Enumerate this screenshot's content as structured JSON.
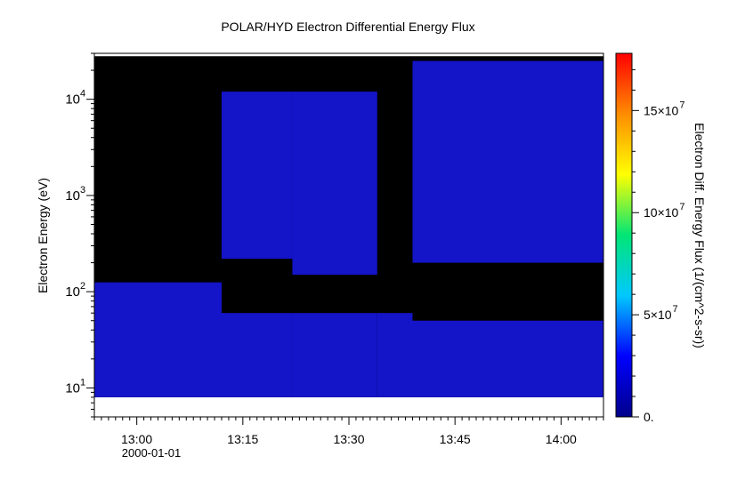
{
  "chart_data": {
    "type": "heatmap",
    "title": "POLAR/HYD  Electron Differential Energy Flux",
    "xlabel": "",
    "ylabel": "Electron Energy (eV)",
    "x_axis": {
      "type": "time",
      "ticks": [
        "13:00",
        "13:15",
        "13:30",
        "13:45",
        "14:00"
      ],
      "date_label": "2000-01-01",
      "range": [
        "12:54",
        "14:06"
      ],
      "minor_tick_minutes": 1
    },
    "y_axis": {
      "scale": "log",
      "range": [
        5,
        30000
      ],
      "tick_labels": [
        "10",
        "10",
        "10",
        "10"
      ],
      "tick_exponents": [
        "1",
        "2",
        "3",
        "4"
      ],
      "data_range": [
        8,
        28000
      ]
    },
    "colorbar": {
      "label": "Electron Diff. Energy Flux (1/(cm^2-s-sr))",
      "range": [
        0,
        178000000
      ],
      "colormap": "rainbow",
      "tick_labels": [
        "0.",
        "5×10",
        "10×10",
        "15×10"
      ],
      "tick_exponents": [
        "",
        "7",
        "7",
        "7"
      ],
      "colors": [
        "#00008b",
        "#0000ff",
        "#00c8ff",
        "#00e676",
        "#ffff00",
        "#ff8c00",
        "#ff0000"
      ]
    },
    "background_color": "#000000",
    "flux_color": "#1414c8",
    "regions": [
      {
        "t_start": "12:54",
        "t_end": "13:12",
        "e_low": 8,
        "e_high": 125
      },
      {
        "t_start": "13:12",
        "t_end": "13:22",
        "e_low": 8,
        "e_high": 60
      },
      {
        "t_start": "13:12",
        "t_end": "13:22",
        "e_low": 220,
        "e_high": 12000
      },
      {
        "t_start": "13:22",
        "t_end": "13:34",
        "e_low": 8,
        "e_high": 60
      },
      {
        "t_start": "13:22",
        "t_end": "13:34",
        "e_low": 150,
        "e_high": 12000
      },
      {
        "t_start": "13:34",
        "t_end": "13:39",
        "e_low": 8,
        "e_high": 60
      },
      {
        "t_start": "13:39",
        "t_end": "14:06",
        "e_low": 8,
        "e_high": 50
      },
      {
        "t_start": "13:39",
        "t_end": "14:06",
        "e_low": 200,
        "e_high": 25000
      }
    ]
  }
}
